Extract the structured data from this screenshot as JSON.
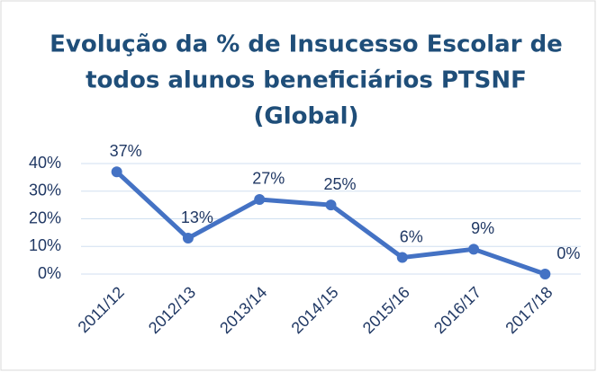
{
  "chart_data": {
    "type": "line",
    "title": [
      "Evolução da % de Insucesso Escolar de",
      "todos alunos beneficiários PTSNF",
      "(Global)"
    ],
    "categories": [
      "2011/12",
      "2012/13",
      "2013/14",
      "2014/15",
      "2015/16",
      "2016/17",
      "2017/18"
    ],
    "values": [
      37,
      13,
      27,
      25,
      6,
      9,
      0
    ],
    "value_labels": [
      "37%",
      "13%",
      "27%",
      "25%",
      "6%",
      "9%",
      "0%"
    ],
    "color": "#4472c4",
    "ylim": [
      0,
      40
    ],
    "yticks": [
      {
        "value": 0,
        "label": "0%"
      },
      {
        "value": 10,
        "label": "10%"
      },
      {
        "value": 20,
        "label": "20%"
      },
      {
        "value": 30,
        "label": "30%"
      },
      {
        "value": 40,
        "label": "40%"
      }
    ],
    "grid": true
  }
}
